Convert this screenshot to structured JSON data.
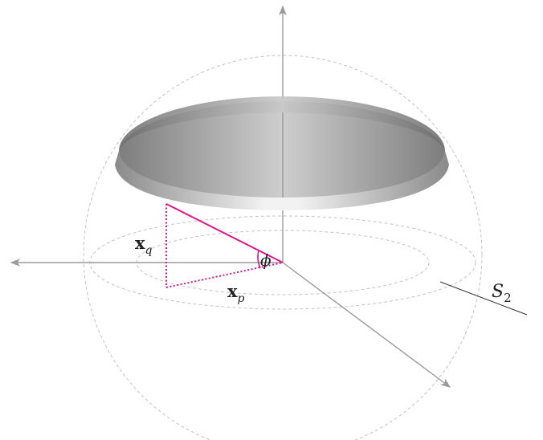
{
  "diagram": {
    "labels": {
      "xq": {
        "base": "x",
        "sub": "q"
      },
      "xp": {
        "base": "x",
        "sub": "p"
      },
      "phi": "ϕ",
      "s2": {
        "base": "S",
        "sub": "2"
      }
    },
    "colors": {
      "axis": "#9a9a9a",
      "sphere_dash": "#bdbdbd",
      "triangle": "#e0168c",
      "ring_dark": "#8c8c8c",
      "ring_light": "#f4f4f4"
    }
  }
}
